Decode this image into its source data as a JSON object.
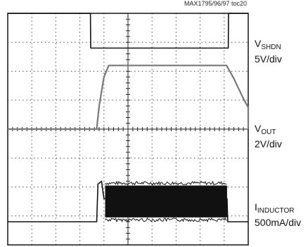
{
  "figure_id": "MAX1795/96/97 toc20",
  "channels": [
    {
      "symbol": "V",
      "subscript": "SHDN",
      "scale": "5V/div"
    },
    {
      "symbol": "V",
      "subscript": "OUT",
      "scale": "2V/div"
    },
    {
      "symbol": "I",
      "subscript": "INDUCTOR",
      "scale": "500mA/div"
    }
  ],
  "colors": {
    "trace": "#111111",
    "vout_trace": "#777777",
    "grid": "#222222",
    "background": "#ffffff"
  },
  "chart_data": {
    "type": "line",
    "title": "",
    "grid": "on",
    "grid_divisions": {
      "x": 10,
      "y": 8
    },
    "xlim_div": [
      0,
      10
    ],
    "ylim_div": [
      0,
      8
    ],
    "series": [
      {
        "name": "VSHDN",
        "x": [
          0,
          3.44,
          3.45,
          9.17,
          9.18,
          10
        ],
        "y": [
          8.0,
          8.0,
          6.8,
          6.8,
          8.0,
          8.0
        ]
      },
      {
        "name": "VOUT",
        "x": [
          0,
          3.7,
          3.8,
          4.0,
          4.2,
          5.0,
          7.0,
          9.1,
          9.2,
          9.4,
          9.6,
          9.8,
          10.0,
          10.5,
          11.0,
          11.7,
          12.0
        ],
        "y": [
          4.0,
          4.0,
          4.8,
          5.8,
          6.2,
          6.2,
          6.2,
          6.2,
          6.05,
          5.75,
          5.4,
          5.05,
          4.75,
          4.35,
          4.15,
          4.02,
          4.0
        ]
      },
      {
        "name": "IINDUCTOR",
        "x": [
          0,
          3.7,
          3.75,
          3.9,
          4.0,
          4.05,
          9.12,
          9.15,
          10,
          12
        ],
        "y": [
          0.8,
          0.8,
          2.1,
          2.2,
          1.6,
          1.6,
          1.6,
          0.8,
          0.8,
          0.8
        ],
        "ripple_band": {
          "x_start": 4.05,
          "x_end": 9.12,
          "y_min": 0.95,
          "y_max": 2.05
        }
      }
    ]
  }
}
